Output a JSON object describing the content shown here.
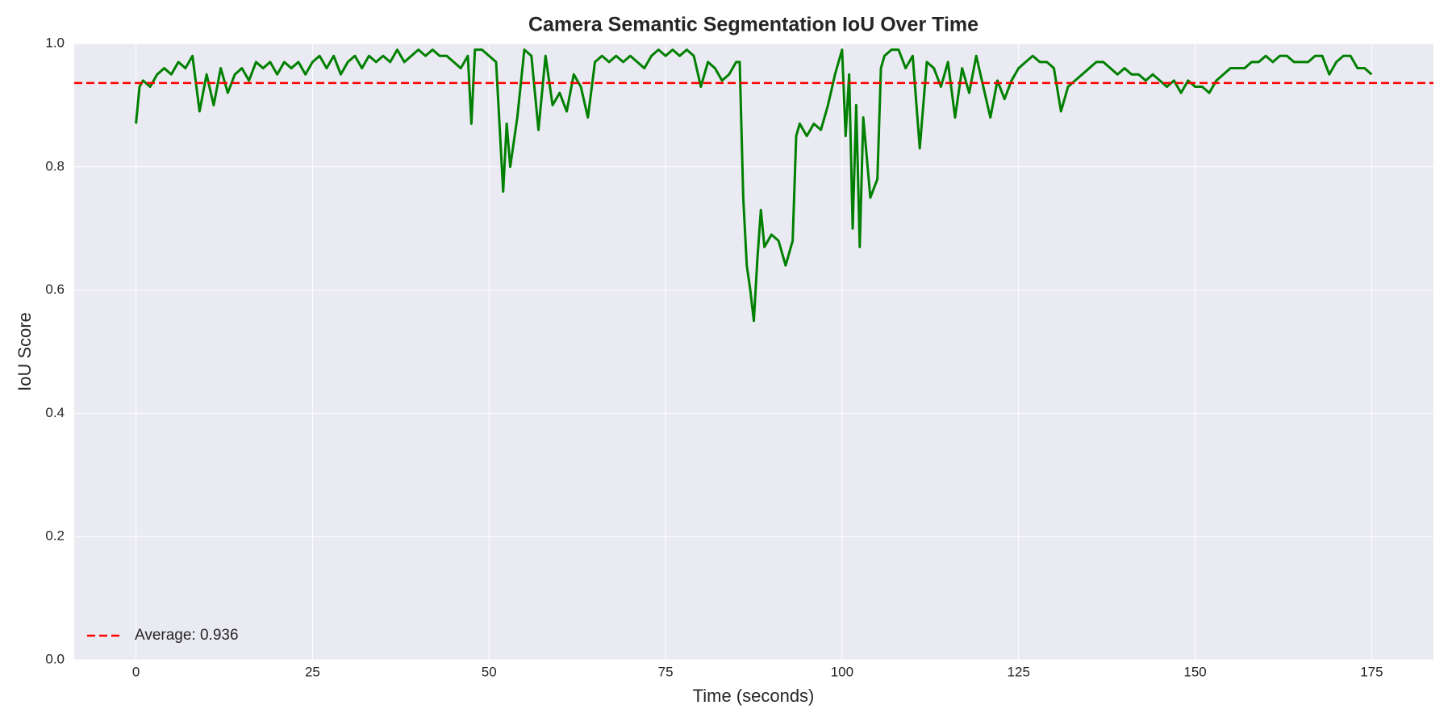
{
  "chart_data": {
    "type": "line",
    "title": "Camera Semantic Segmentation IoU Over Time",
    "x_label": "Time (seconds)",
    "y_label": "IoU Score",
    "x": [
      0,
      0.5,
      1,
      2,
      3,
      4,
      5,
      6,
      7,
      8,
      9,
      10,
      11,
      12,
      13,
      14,
      15,
      16,
      17,
      18,
      19,
      20,
      21,
      22,
      23,
      24,
      25,
      26,
      27,
      28,
      29,
      30,
      31,
      32,
      33,
      34,
      35,
      36,
      37,
      38,
      39,
      40,
      41,
      42,
      43,
      44,
      45,
      46,
      47,
      47.5,
      48,
      49,
      50,
      51,
      52,
      52.5,
      53,
      54,
      55,
      56,
      57,
      58,
      59,
      60,
      61,
      62,
      63,
      64,
      65,
      66,
      67,
      68,
      69,
      70,
      71,
      72,
      73,
      74,
      75,
      76,
      77,
      78,
      79,
      80,
      81,
      82,
      83,
      84,
      85,
      85.5,
      86,
      86.5,
      87,
      87.5,
      88,
      88.5,
      89,
      90,
      91,
      92,
      93,
      93.5,
      94,
      95,
      96,
      97,
      98,
      99,
      100,
      100.5,
      101,
      101.5,
      102,
      102.5,
      103,
      104,
      105,
      105.5,
      106,
      107,
      108,
      109,
      110,
      111,
      112,
      113,
      114,
      115,
      116,
      117,
      118,
      119,
      120,
      121,
      122,
      123,
      124,
      125,
      126,
      127,
      128,
      129,
      130,
      131,
      132,
      133,
      134,
      135,
      136,
      137,
      138,
      139,
      140,
      141,
      142,
      143,
      144,
      145,
      146,
      147,
      148,
      149,
      150,
      151,
      152,
      153,
      154,
      155,
      156,
      157,
      158,
      159,
      160,
      161,
      162,
      163,
      164,
      165,
      166,
      167,
      168,
      169,
      170,
      171,
      172,
      173,
      174,
      175
    ],
    "values": [
      0.87,
      0.93,
      0.94,
      0.93,
      0.95,
      0.96,
      0.95,
      0.97,
      0.96,
      0.98,
      0.89,
      0.95,
      0.9,
      0.96,
      0.92,
      0.95,
      0.96,
      0.94,
      0.97,
      0.96,
      0.97,
      0.95,
      0.97,
      0.96,
      0.97,
      0.95,
      0.97,
      0.98,
      0.96,
      0.98,
      0.95,
      0.97,
      0.98,
      0.96,
      0.98,
      0.97,
      0.98,
      0.97,
      0.99,
      0.97,
      0.98,
      0.99,
      0.98,
      0.99,
      0.98,
      0.98,
      0.97,
      0.96,
      0.98,
      0.87,
      0.99,
      0.99,
      0.98,
      0.97,
      0.76,
      0.87,
      0.8,
      0.88,
      0.99,
      0.98,
      0.86,
      0.98,
      0.9,
      0.92,
      0.89,
      0.95,
      0.93,
      0.88,
      0.97,
      0.98,
      0.97,
      0.98,
      0.97,
      0.98,
      0.97,
      0.96,
      0.98,
      0.99,
      0.98,
      0.99,
      0.98,
      0.99,
      0.98,
      0.93,
      0.97,
      0.96,
      0.94,
      0.95,
      0.97,
      0.97,
      0.75,
      0.64,
      0.6,
      0.55,
      0.65,
      0.73,
      0.67,
      0.69,
      0.68,
      0.64,
      0.68,
      0.85,
      0.87,
      0.85,
      0.87,
      0.86,
      0.9,
      0.95,
      0.99,
      0.85,
      0.95,
      0.7,
      0.9,
      0.67,
      0.88,
      0.75,
      0.78,
      0.96,
      0.98,
      0.99,
      0.99,
      0.96,
      0.98,
      0.83,
      0.97,
      0.96,
      0.93,
      0.97,
      0.88,
      0.96,
      0.92,
      0.98,
      0.93,
      0.88,
      0.94,
      0.91,
      0.94,
      0.96,
      0.97,
      0.98,
      0.97,
      0.97,
      0.96,
      0.89,
      0.93,
      0.94,
      0.95,
      0.96,
      0.97,
      0.97,
      0.96,
      0.95,
      0.96,
      0.95,
      0.95,
      0.94,
      0.95,
      0.94,
      0.93,
      0.94,
      0.92,
      0.94,
      0.93,
      0.93,
      0.92,
      0.94,
      0.95,
      0.96,
      0.96,
      0.96,
      0.97,
      0.97,
      0.98,
      0.97,
      0.98,
      0.98,
      0.97,
      0.97,
      0.97,
      0.98,
      0.98,
      0.95,
      0.97,
      0.98,
      0.98,
      0.96,
      0.96,
      0.95
    ],
    "color": "#008000",
    "reference_line": {
      "value": 0.936,
      "label": "Average: 0.936",
      "color": "#ff0000"
    },
    "xlim": [
      -8.75,
      183.75
    ],
    "ylim": [
      0,
      1
    ],
    "xticks": [
      0,
      25,
      50,
      75,
      100,
      125,
      150,
      175
    ],
    "yticks": [
      {
        "value": 0,
        "label": "0.0"
      },
      0.2,
      0.4,
      0.6,
      0.8,
      {
        "value": 1,
        "label": "1.0"
      }
    ],
    "grid": true,
    "legend": "lower left"
  }
}
